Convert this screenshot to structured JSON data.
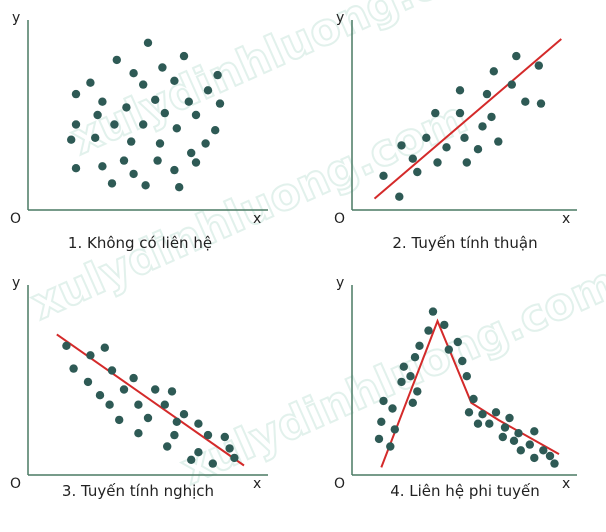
{
  "chart_data": [
    {
      "type": "scatter",
      "caption": "1. Không có liên hệ",
      "xlabel": "x",
      "ylabel": "y",
      "origin": "O",
      "xlim": [
        0,
        10
      ],
      "ylim": [
        0,
        10
      ],
      "points": [
        [
          5.0,
          8.8
        ],
        [
          3.7,
          7.9
        ],
        [
          6.5,
          8.1
        ],
        [
          7.9,
          7.1
        ],
        [
          5.6,
          7.5
        ],
        [
          4.4,
          7.2
        ],
        [
          2.6,
          6.7
        ],
        [
          4.8,
          6.6
        ],
        [
          6.1,
          6.8
        ],
        [
          7.5,
          6.3
        ],
        [
          2.0,
          6.1
        ],
        [
          3.1,
          5.7
        ],
        [
          4.1,
          5.4
        ],
        [
          5.3,
          5.8
        ],
        [
          6.7,
          5.7
        ],
        [
          8.0,
          5.6
        ],
        [
          2.9,
          5.0
        ],
        [
          5.7,
          5.1
        ],
        [
          7.0,
          5.0
        ],
        [
          2.0,
          4.5
        ],
        [
          3.6,
          4.5
        ],
        [
          4.8,
          4.5
        ],
        [
          6.2,
          4.3
        ],
        [
          7.8,
          4.2
        ],
        [
          1.8,
          3.7
        ],
        [
          2.8,
          3.8
        ],
        [
          4.3,
          3.6
        ],
        [
          5.5,
          3.5
        ],
        [
          7.4,
          3.5
        ],
        [
          6.8,
          3.0
        ],
        [
          4.0,
          2.6
        ],
        [
          5.4,
          2.6
        ],
        [
          7.0,
          2.5
        ],
        [
          3.1,
          2.3
        ],
        [
          2.0,
          2.2
        ],
        [
          6.1,
          2.1
        ],
        [
          4.4,
          1.9
        ],
        [
          3.5,
          1.4
        ],
        [
          4.9,
          1.3
        ],
        [
          6.3,
          1.2
        ]
      ]
    },
    {
      "type": "scatter",
      "caption": "2. Tuyến tính thuận",
      "xlabel": "x",
      "ylabel": "y",
      "origin": "O",
      "xlim": [
        0,
        10
      ],
      "ylim": [
        0,
        10
      ],
      "trend": [
        [
          1.0,
          0.6
        ],
        [
          9.3,
          9.0
        ]
      ],
      "points": [
        [
          7.3,
          8.1
        ],
        [
          8.3,
          7.6
        ],
        [
          6.3,
          7.3
        ],
        [
          4.8,
          6.3
        ],
        [
          6.0,
          6.1
        ],
        [
          7.1,
          6.6
        ],
        [
          7.7,
          5.7
        ],
        [
          8.4,
          5.6
        ],
        [
          3.7,
          5.1
        ],
        [
          4.8,
          5.1
        ],
        [
          6.2,
          4.9
        ],
        [
          5.8,
          4.4
        ],
        [
          3.3,
          3.8
        ],
        [
          5.0,
          3.8
        ],
        [
          6.5,
          3.6
        ],
        [
          2.2,
          3.4
        ],
        [
          4.2,
          3.3
        ],
        [
          5.6,
          3.2
        ],
        [
          2.7,
          2.7
        ],
        [
          3.8,
          2.5
        ],
        [
          5.1,
          2.5
        ],
        [
          1.4,
          1.8
        ],
        [
          2.9,
          2.0
        ],
        [
          2.1,
          0.7
        ]
      ]
    },
    {
      "type": "scatter",
      "caption": "3. Tuyến tính nghịch",
      "xlabel": "x",
      "ylabel": "y",
      "origin": "O",
      "xlim": [
        0,
        10
      ],
      "ylim": [
        0,
        10
      ],
      "trend": [
        [
          1.2,
          7.4
        ],
        [
          9.0,
          0.5
        ]
      ],
      "points": [
        [
          1.6,
          6.8
        ],
        [
          2.6,
          6.3
        ],
        [
          3.2,
          6.7
        ],
        [
          1.9,
          5.6
        ],
        [
          3.5,
          5.5
        ],
        [
          4.4,
          5.1
        ],
        [
          2.5,
          4.9
        ],
        [
          3.0,
          4.2
        ],
        [
          4.0,
          4.5
        ],
        [
          5.3,
          4.5
        ],
        [
          6.0,
          4.4
        ],
        [
          3.4,
          3.7
        ],
        [
          4.6,
          3.7
        ],
        [
          5.7,
          3.7
        ],
        [
          6.5,
          3.2
        ],
        [
          3.8,
          2.9
        ],
        [
          5.0,
          3.0
        ],
        [
          6.2,
          2.8
        ],
        [
          7.1,
          2.7
        ],
        [
          4.6,
          2.2
        ],
        [
          6.1,
          2.1
        ],
        [
          7.5,
          2.1
        ],
        [
          8.2,
          2.0
        ],
        [
          5.8,
          1.5
        ],
        [
          7.1,
          1.2
        ],
        [
          8.4,
          1.4
        ],
        [
          6.8,
          0.8
        ],
        [
          7.7,
          0.6
        ],
        [
          8.6,
          0.9
        ]
      ]
    },
    {
      "type": "scatter",
      "caption": "4. Liên hệ phi tuyến",
      "xlabel": "x",
      "ylabel": "y",
      "origin": "O",
      "xlim": [
        0,
        10
      ],
      "ylim": [
        0,
        10
      ],
      "trend": [
        [
          1.3,
          0.4
        ],
        [
          3.8,
          8.1
        ],
        [
          5.3,
          3.8
        ],
        [
          6.5,
          2.9
        ],
        [
          9.2,
          1.1
        ]
      ],
      "points": [
        [
          3.6,
          8.6
        ],
        [
          4.1,
          7.9
        ],
        [
          3.4,
          7.6
        ],
        [
          3.0,
          6.8
        ],
        [
          4.3,
          6.6
        ],
        [
          2.8,
          6.2
        ],
        [
          4.7,
          7.0
        ],
        [
          2.3,
          5.7
        ],
        [
          4.9,
          6.0
        ],
        [
          2.6,
          5.2
        ],
        [
          2.2,
          4.9
        ],
        [
          5.1,
          5.2
        ],
        [
          2.9,
          4.4
        ],
        [
          1.4,
          3.9
        ],
        [
          2.7,
          3.8
        ],
        [
          5.4,
          4.0
        ],
        [
          1.8,
          3.5
        ],
        [
          5.2,
          3.3
        ],
        [
          1.3,
          2.8
        ],
        [
          1.9,
          2.4
        ],
        [
          5.8,
          3.2
        ],
        [
          6.4,
          3.3
        ],
        [
          5.6,
          2.7
        ],
        [
          6.1,
          2.7
        ],
        [
          7.0,
          3.0
        ],
        [
          6.8,
          2.5
        ],
        [
          1.2,
          1.9
        ],
        [
          1.7,
          1.5
        ],
        [
          6.7,
          2.0
        ],
        [
          7.4,
          2.2
        ],
        [
          7.2,
          1.8
        ],
        [
          8.1,
          2.3
        ],
        [
          7.5,
          1.3
        ],
        [
          7.9,
          1.6
        ],
        [
          8.5,
          1.3
        ],
        [
          8.1,
          0.9
        ],
        [
          8.8,
          1.0
        ],
        [
          9.0,
          0.6
        ]
      ]
    }
  ]
}
